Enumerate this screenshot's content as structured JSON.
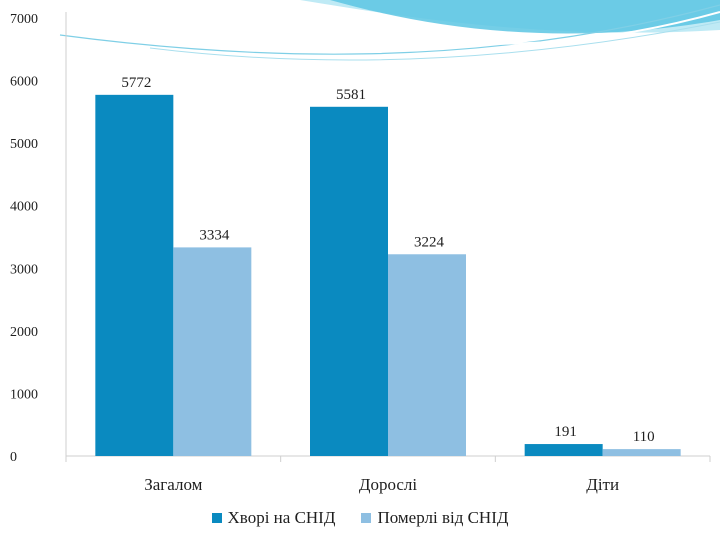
{
  "chart_data": {
    "type": "bar",
    "categories": [
      "Загалом",
      "Дорослі",
      "Діти"
    ],
    "series": [
      {
        "name": "Хворі на СНІД",
        "values": [
          5772,
          5581,
          191
        ],
        "color": "#0a8ac0"
      },
      {
        "name": "Померлі від СНІД",
        "values": [
          3334,
          3224,
          110
        ],
        "color": "#8ebfe2"
      }
    ],
    "ylim": [
      0,
      7000
    ],
    "yticks": [
      "0",
      "1000",
      "2000",
      "3000",
      "4000",
      "5000",
      "6000",
      "7000"
    ],
    "data_labels": [
      [
        "5772",
        "5581",
        "191"
      ],
      [
        "3334",
        "3224",
        "110"
      ]
    ],
    "legend_position": "bottom",
    "grid": false
  },
  "decoration": {
    "wave_colors": [
      "#6fd0e8",
      "#3cb3d9",
      "#bfeaf5"
    ]
  }
}
